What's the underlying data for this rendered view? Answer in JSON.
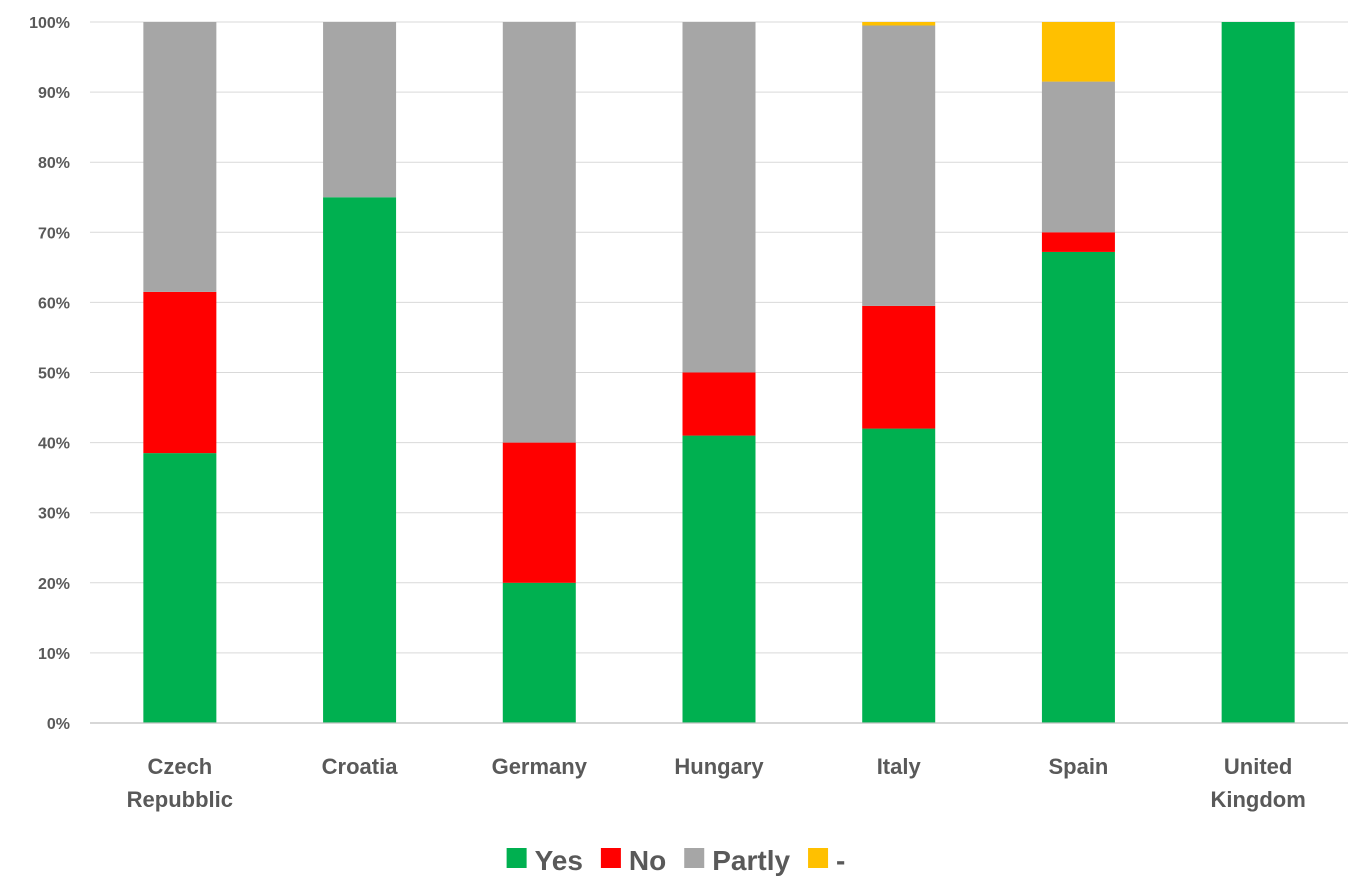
{
  "chart_data": {
    "type": "bar",
    "stacked": true,
    "normalized": true,
    "categories": [
      "Czech\nRepubblic",
      "Croatia",
      "Germany",
      "Hungary",
      "Italy",
      "Spain",
      "United\nKingdom"
    ],
    "series": [
      {
        "name": "Yes",
        "color": "#00b050",
        "values": [
          38.5,
          75,
          20,
          41,
          42,
          67.2,
          100
        ]
      },
      {
        "name": "No",
        "color": "#ff0000",
        "values": [
          23,
          0,
          20,
          9,
          17.5,
          2.8,
          0
        ]
      },
      {
        "name": "Partly",
        "color": "#a6a6a6",
        "values": [
          38.5,
          25,
          60,
          50,
          40,
          21.5,
          0
        ]
      },
      {
        "name": "-",
        "color": "#ffc000",
        "values": [
          0,
          0,
          0,
          0,
          0.5,
          8.5,
          0
        ]
      }
    ],
    "yticks": [
      "0%",
      "10%",
      "20%",
      "30%",
      "40%",
      "50%",
      "60%",
      "70%",
      "80%",
      "90%",
      "100%"
    ],
    "ylim": [
      0,
      100
    ],
    "grid": true,
    "legend_position": "bottom"
  }
}
